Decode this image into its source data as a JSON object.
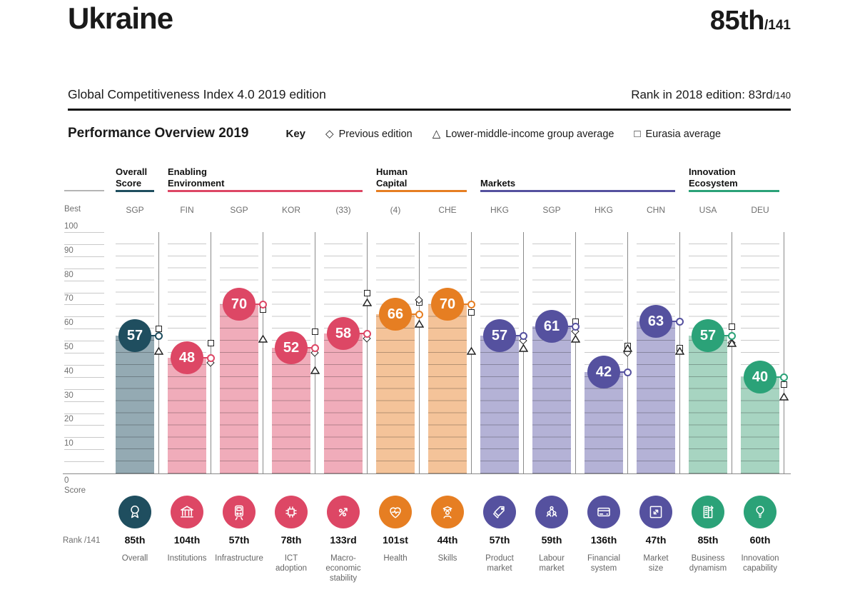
{
  "header": {
    "country": "Ukraine",
    "rank": "85th",
    "rank_total": "/141",
    "edition_label": "Global Competitiveness Index 4.0 2019 edition",
    "previous_rank_label": "Rank in 2018 edition: 83rd",
    "previous_rank_total": "/140"
  },
  "overview": {
    "title": "Performance Overview 2019",
    "key_label": "Key",
    "key_items": [
      {
        "symbol": "◇",
        "label": "Previous edition",
        "icon": "diamond-outline-icon"
      },
      {
        "symbol": "△",
        "label": "Lower-middle-income group average",
        "icon": "triangle-outline-icon"
      },
      {
        "symbol": "□",
        "label": "Eurasia average",
        "icon": "square-outline-icon"
      }
    ]
  },
  "chart_data": {
    "type": "bar",
    "title": "Performance Overview 2019",
    "ylabel": "Score",
    "ylim": [
      0,
      100
    ],
    "grid_step": 5,
    "best_row_label": "Best",
    "zero_label": "0",
    "rank_row_label": "Rank /141",
    "legend": [
      "Previous edition",
      "Lower-middle-income group average",
      "Eurasia average"
    ],
    "groups": [
      {
        "name": "Overall\nScore",
        "color": "#1F4E5F",
        "bar_color": "#94AAB3",
        "span": [
          0,
          0
        ]
      },
      {
        "name": "Enabling\nEnvironment",
        "color": "#DD4765",
        "bar_color": "#F0ACBA",
        "span": [
          1,
          4
        ]
      },
      {
        "name": "Human\nCapital",
        "color": "#E67E22",
        "bar_color": "#F4C399",
        "span": [
          5,
          6
        ]
      },
      {
        "name": "Markets",
        "color": "#55519F",
        "bar_color": "#B4B2D6",
        "span": [
          7,
          10
        ]
      },
      {
        "name": "Innovation\nEcosystem",
        "color": "#2BA278",
        "bar_color": "#A7D4C1",
        "span": [
          11,
          12
        ]
      }
    ],
    "pillars": [
      {
        "name_lines": [
          "Overall"
        ],
        "best": "SGP",
        "score": 57,
        "rank": "85th",
        "group": 0,
        "icon": "medal-icon",
        "markers": {
          "eurasia": 60,
          "lmi": 51
        }
      },
      {
        "name_lines": [
          "Institutions"
        ],
        "best": "FIN",
        "score": 48,
        "rank": "104th",
        "group": 1,
        "icon": "bank-icon",
        "markers": {
          "eurasia": 54,
          "previous": 46
        }
      },
      {
        "name_lines": [
          "Infrastructure"
        ],
        "best": "SGP",
        "score": 70,
        "rank": "57th",
        "group": 1,
        "icon": "train-icon",
        "markers": {
          "eurasia": 68,
          "lmi": 56
        }
      },
      {
        "name_lines": [
          "ICT",
          "adoption"
        ],
        "best": "KOR",
        "score": 52,
        "rank": "78th",
        "group": 1,
        "icon": "chip-icon",
        "markers": {
          "eurasia": 59,
          "previous": 50,
          "lmi": 43
        }
      },
      {
        "name_lines": [
          "Macro-",
          "economic",
          "stability"
        ],
        "best": "(33)",
        "score": 58,
        "rank": "133rd",
        "group": 1,
        "icon": "percent-arrow-icon",
        "markers": {
          "eurasia": 75,
          "lmi": 71,
          "previous": 56
        }
      },
      {
        "name_lines": [
          "Health"
        ],
        "best": "(4)",
        "score": 66,
        "rank": "101st",
        "group": 2,
        "icon": "heart-pulse-icon",
        "markers": {
          "previous": 72,
          "eurasia": 71,
          "lmi": 62
        }
      },
      {
        "name_lines": [
          "Skills"
        ],
        "best": "CHE",
        "score": 70,
        "rank": "44th",
        "group": 2,
        "icon": "graduate-icon",
        "markers": {
          "eurasia": 67,
          "lmi": 51
        }
      },
      {
        "name_lines": [
          "Product",
          "market"
        ],
        "best": "HKG",
        "score": 57,
        "rank": "57th",
        "group": 3,
        "icon": "price-tag-icon",
        "markers": {
          "previous": 55,
          "lmi": 52
        }
      },
      {
        "name_lines": [
          "Labour",
          "market"
        ],
        "best": "SGP",
        "score": 61,
        "rank": "59th",
        "group": 3,
        "icon": "people-icon",
        "markers": {
          "eurasia": 63,
          "previous": 59,
          "lmi": 56
        }
      },
      {
        "name_lines": [
          "Financial",
          "system"
        ],
        "best": "HKG",
        "score": 42,
        "rank": "136th",
        "group": 3,
        "icon": "credit-card-icon",
        "markers": {
          "eurasia": 53,
          "previous": 50,
          "lmi": 52
        }
      },
      {
        "name_lines": [
          "Market",
          "size"
        ],
        "best": "CHN",
        "score": 63,
        "rank": "47th",
        "group": 3,
        "icon": "expand-icon",
        "markers": {
          "eurasia": 52,
          "lmi": 51
        }
      },
      {
        "name_lines": [
          "Business",
          "dynamism"
        ],
        "best": "USA",
        "score": 57,
        "rank": "85th",
        "group": 4,
        "icon": "building-arrow-icon",
        "markers": {
          "eurasia": 61,
          "previous": 54,
          "lmi": 54
        }
      },
      {
        "name_lines": [
          "Innovation",
          "capability"
        ],
        "best": "DEU",
        "score": 40,
        "rank": "60th",
        "group": 4,
        "icon": "lightbulb-icon",
        "markers": {
          "eurasia": 37,
          "lmi": 32
        }
      }
    ]
  }
}
